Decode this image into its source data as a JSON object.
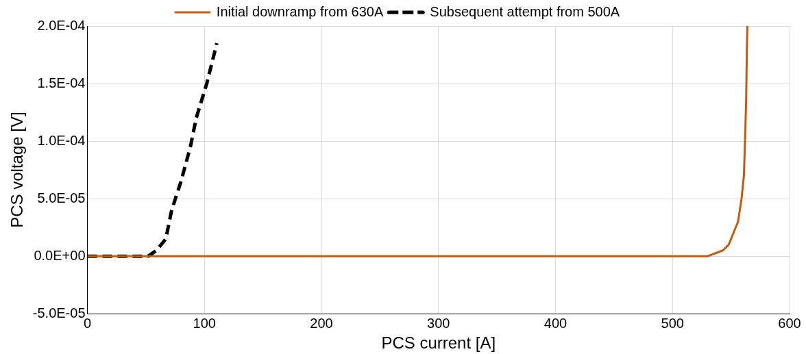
{
  "chart_data": {
    "type": "line",
    "xlabel": "PCS current [A]",
    "ylabel": "PCS voltage [V]",
    "legend": "top",
    "grid": true,
    "marker": "none",
    "xlim": [
      0,
      600
    ],
    "xticks": [
      0,
      100,
      200,
      300,
      400,
      500,
      600
    ],
    "ylim": [
      -5e-05,
      0.0002
    ],
    "yticks": [
      {
        "value": -5e-05,
        "label": "-5.0E-05"
      },
      {
        "value": 0,
        "label": "0.0E+00"
      },
      {
        "value": 5e-05,
        "label": "5.0E-05"
      },
      {
        "value": 0.0001,
        "label": "1.0E-04"
      },
      {
        "value": 0.00015,
        "label": "1.5E-04"
      },
      {
        "value": 0.0002,
        "label": "2.0E-04"
      }
    ],
    "series": [
      {
        "name": "Initial downramp from 630A",
        "color": "#c55a11",
        "line_style": "solid",
        "x": [
          0,
          100,
          200,
          300,
          400,
          500,
          530,
          543,
          548,
          552,
          556,
          559,
          561,
          562,
          563,
          563.5,
          564
        ],
        "values": [
          0,
          0,
          0,
          0,
          0,
          0,
          0,
          5e-06,
          1e-05,
          2e-05,
          3e-05,
          5e-05,
          7e-05,
          0.0001,
          0.00014,
          0.00018,
          0.0002
        ]
      },
      {
        "name": "Subsequent attempt from 500A",
        "color": "#000000",
        "line_style": "dashed",
        "x": [
          0,
          20,
          40,
          52,
          59,
          67,
          72,
          80,
          88,
          93,
          102,
          110.6
        ],
        "values": [
          0,
          0,
          0,
          0,
          5e-06,
          1.5e-05,
          4e-05,
          6.5e-05,
          9.5e-05,
          0.00012,
          0.00015,
          0.000185
        ]
      }
    ]
  }
}
